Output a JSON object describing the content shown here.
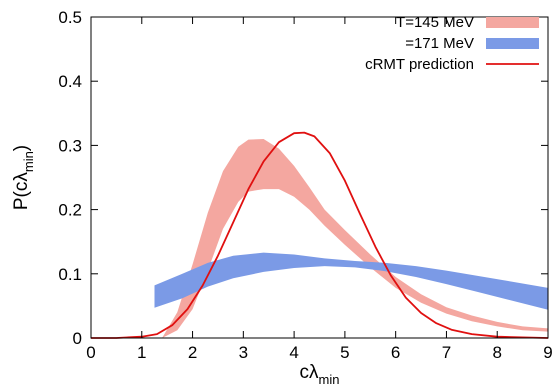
{
  "chart_data": {
    "type": "area",
    "xlabel": {
      "base": "cλ",
      "sub": "min"
    },
    "ylabel": {
      "base": "P(cλ",
      "sub": "min",
      "close": ")"
    },
    "xlim": [
      0,
      9
    ],
    "ylim": [
      0,
      0.5
    ],
    "xticks": [
      "0",
      "1",
      "2",
      "3",
      "4",
      "5",
      "6",
      "7",
      "8",
      "9"
    ],
    "yticks": [
      "0",
      "0.1",
      "0.2",
      "0.3",
      "0.4",
      "0.5"
    ],
    "grid": false,
    "legend_position": "top-right",
    "series": [
      {
        "name": "T=145 MeV",
        "kind": "band",
        "color": "#f4a7a0",
        "x": [
          1.4,
          1.7,
          2.0,
          2.3,
          2.6,
          2.9,
          3.1,
          3.4,
          3.7,
          4.0,
          4.3,
          4.6,
          5.0,
          5.5,
          6.0,
          6.5,
          7.0,
          7.5,
          8.0,
          8.5,
          9.0
        ],
        "lower": [
          0.0,
          0.012,
          0.045,
          0.105,
          0.17,
          0.212,
          0.228,
          0.232,
          0.232,
          0.22,
          0.2,
          0.175,
          0.145,
          0.11,
          0.078,
          0.055,
          0.038,
          0.026,
          0.018,
          0.012,
          0.01
        ],
        "upper": [
          0.0,
          0.04,
          0.115,
          0.195,
          0.26,
          0.298,
          0.309,
          0.31,
          0.295,
          0.268,
          0.235,
          0.2,
          0.168,
          0.13,
          0.095,
          0.068,
          0.048,
          0.035,
          0.025,
          0.018,
          0.015
        ]
      },
      {
        "name": "=171 MeV",
        "kind": "band",
        "color": "#7b9ae6",
        "x": [
          1.25,
          1.8,
          2.3,
          2.8,
          3.4,
          4.0,
          4.6,
          5.2,
          5.8,
          6.4,
          7.0,
          7.6,
          8.2,
          9.0
        ],
        "lower": [
          0.047,
          0.062,
          0.08,
          0.093,
          0.103,
          0.109,
          0.112,
          0.11,
          0.104,
          0.095,
          0.084,
          0.072,
          0.06,
          0.044
        ],
        "upper": [
          0.082,
          0.1,
          0.117,
          0.128,
          0.133,
          0.13,
          0.124,
          0.12,
          0.117,
          0.112,
          0.105,
          0.097,
          0.089,
          0.078
        ]
      },
      {
        "name": "cRMT prediction",
        "kind": "line",
        "color": "#e01010",
        "x": [
          0.0,
          0.5,
          1.0,
          1.3,
          1.6,
          1.9,
          2.2,
          2.5,
          2.8,
          3.1,
          3.4,
          3.7,
          4.0,
          4.2,
          4.4,
          4.7,
          5.0,
          5.3,
          5.6,
          5.9,
          6.2,
          6.5,
          6.8,
          7.1,
          7.5,
          8.0,
          8.5,
          9.0
        ],
        "y": [
          0.0,
          0.0,
          0.002,
          0.006,
          0.02,
          0.045,
          0.082,
          0.128,
          0.18,
          0.232,
          0.275,
          0.305,
          0.319,
          0.32,
          0.314,
          0.288,
          0.245,
          0.193,
          0.142,
          0.098,
          0.063,
          0.039,
          0.023,
          0.013,
          0.006,
          0.002,
          0.001,
          0.0
        ]
      }
    ]
  }
}
